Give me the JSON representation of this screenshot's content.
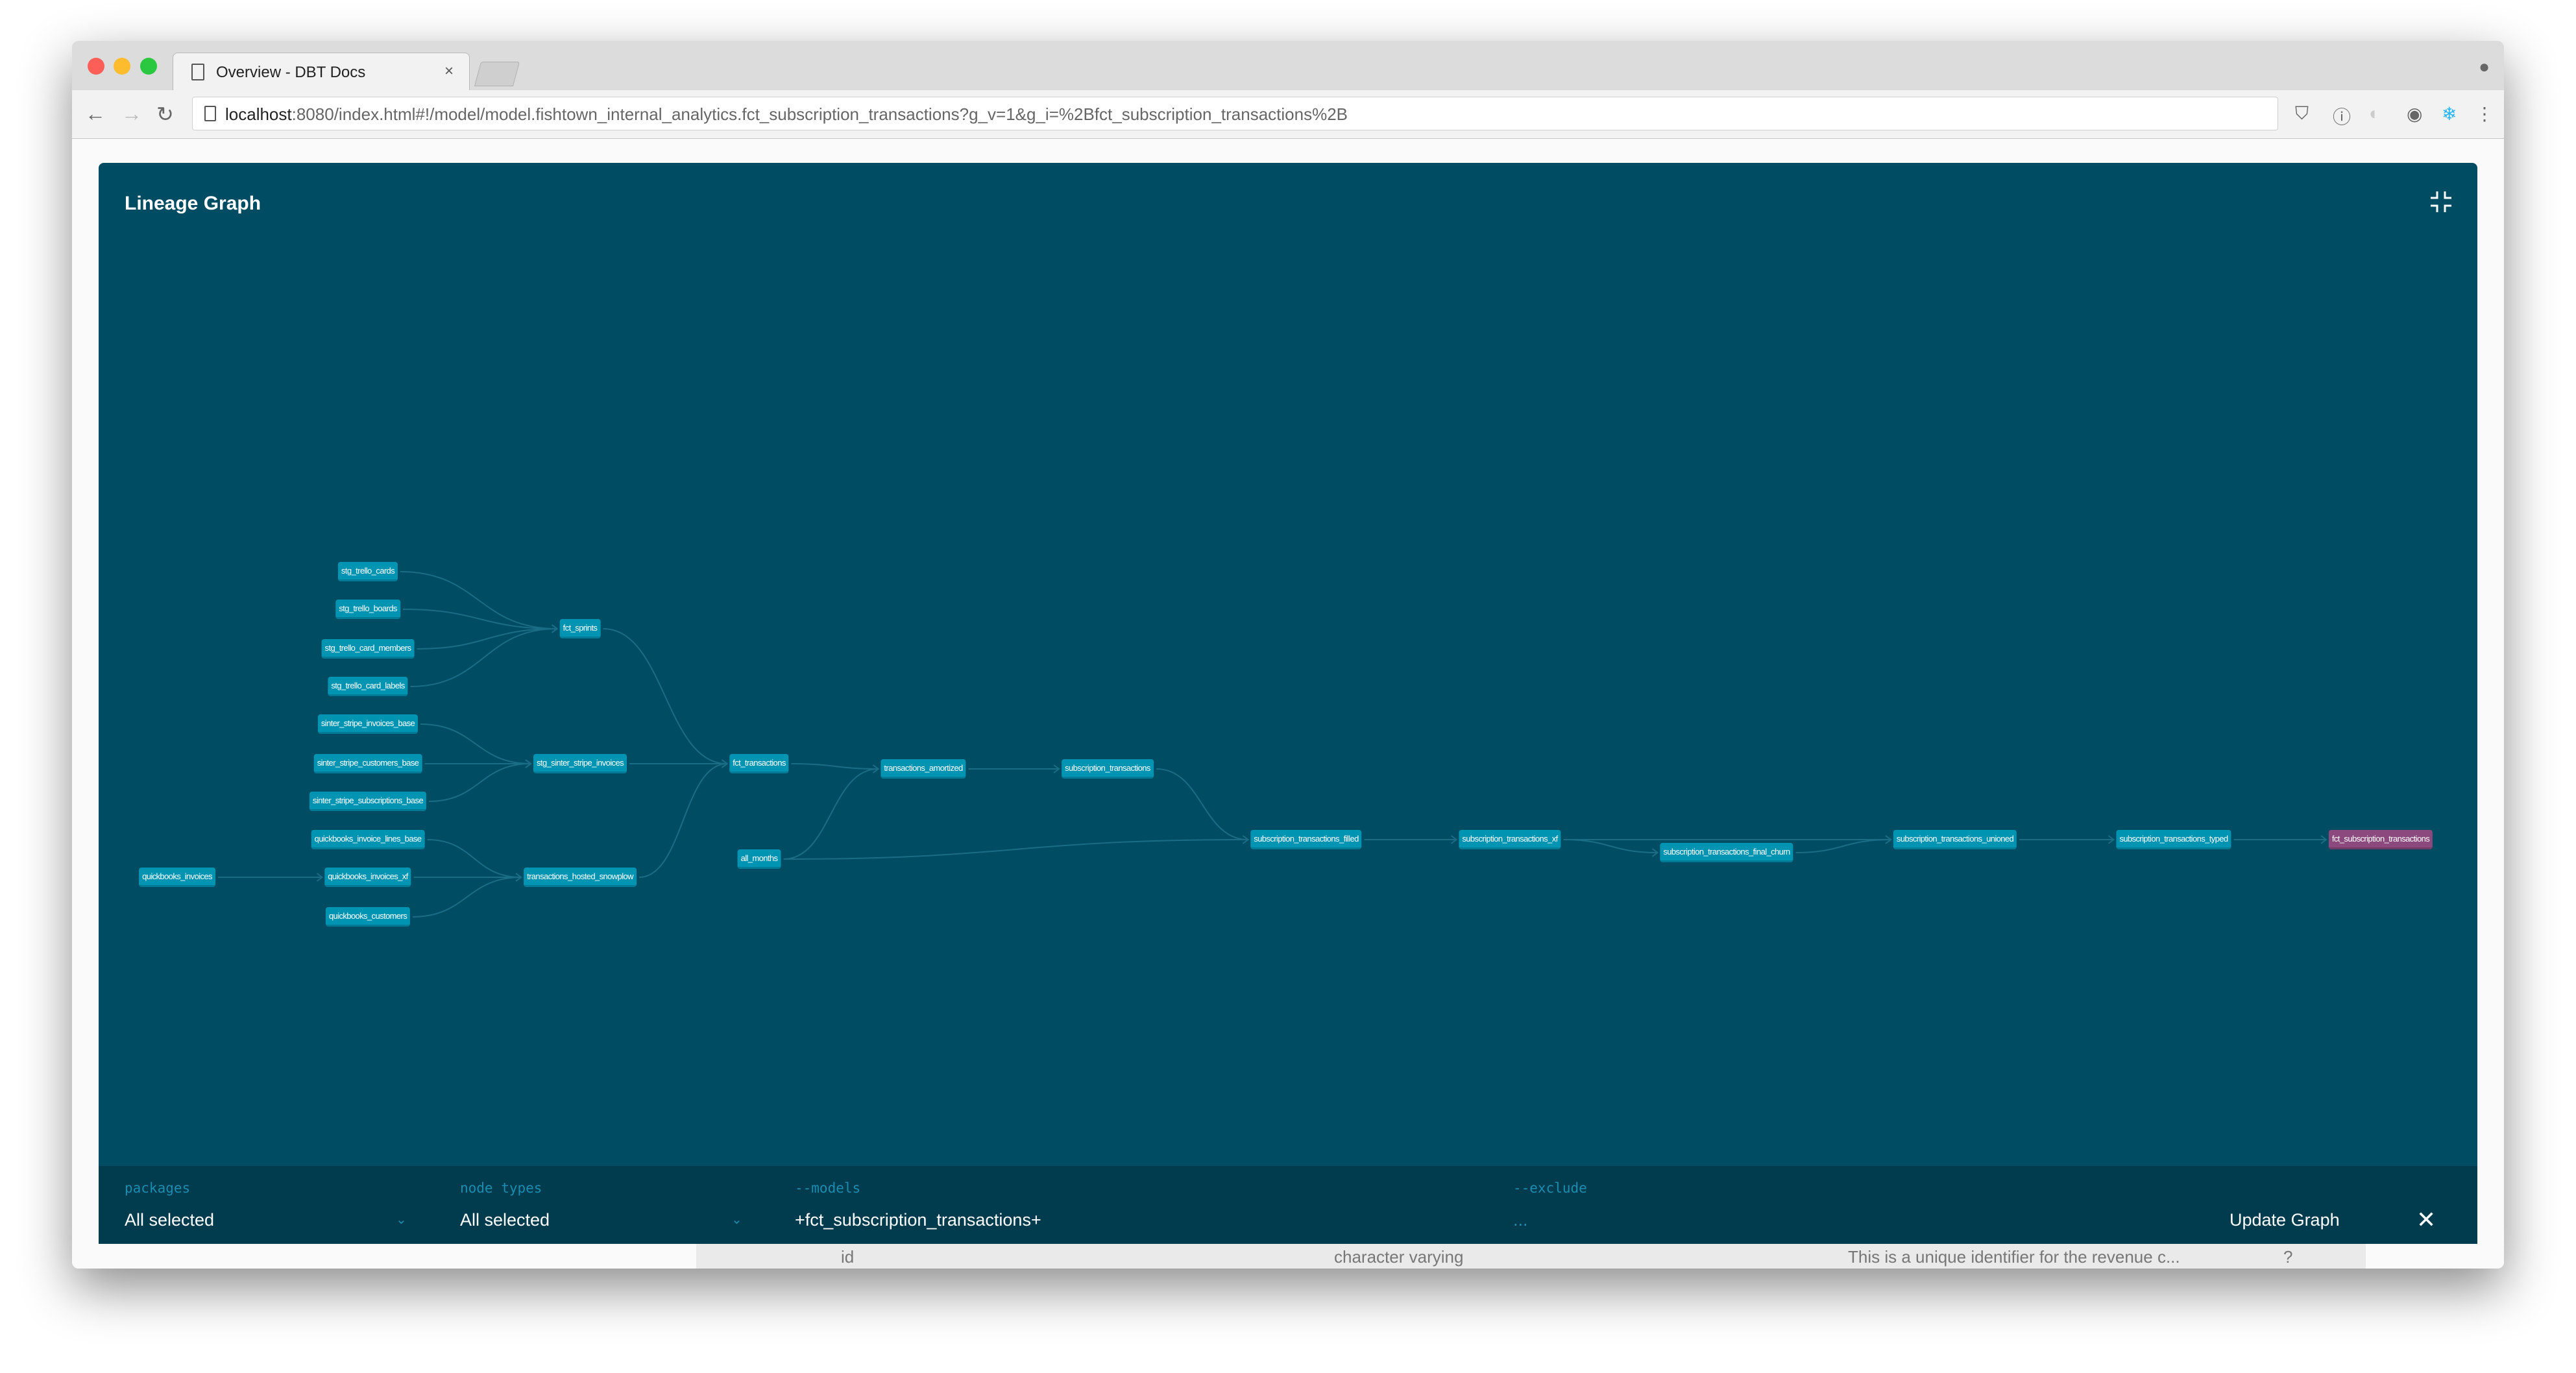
{
  "browser": {
    "tab_title": "Overview - DBT Docs",
    "tab_close": "×",
    "url_host": "localhost",
    "url_rest": ":8080/index.html#!/model/model.fishtown_internal_analytics.fct_subscription_transactions?g_v=1&g_i=%2Bfct_subscription_transactions%2B"
  },
  "background_page": {
    "row": [
      "id",
      "character varying",
      "This is a unique identifier for the revenue c...",
      "?"
    ]
  },
  "lineage": {
    "title": "Lineage Graph",
    "selected_node": "fct_subscription_transactions",
    "colors": {
      "panel": "#004c63",
      "node": "#0094b3",
      "selected_node": "#8b497e",
      "edge": "#1b6d86"
    },
    "nodes": [
      "stg_trello_cards",
      "stg_trello_boards",
      "stg_trello_card_members",
      "stg_trello_card_labels",
      "sinter_stripe_invoices_base",
      "sinter_stripe_customers_base",
      "sinter_stripe_subscriptions_base",
      "quickbooks_invoice_lines_base",
      "quickbooks_invoices_xf",
      "quickbooks_customers",
      "quickbooks_invoices",
      "fct_sprints",
      "stg_sinter_stripe_invoices",
      "transactions_hosted_snowplow",
      "fct_transactions",
      "all_months",
      "transactions_amortized",
      "subscription_transactions",
      "subscription_transactions_filled",
      "subscription_transactions_xf",
      "subscription_transactions_final_churn",
      "subscription_transactions_unioned",
      "subscription_transactions_typed",
      "fct_subscription_transactions"
    ],
    "edges": [
      [
        "stg_trello_cards",
        "fct_sprints"
      ],
      [
        "stg_trello_boards",
        "fct_sprints"
      ],
      [
        "stg_trello_card_members",
        "fct_sprints"
      ],
      [
        "stg_trello_card_labels",
        "fct_sprints"
      ],
      [
        "sinter_stripe_invoices_base",
        "stg_sinter_stripe_invoices"
      ],
      [
        "sinter_stripe_customers_base",
        "stg_sinter_stripe_invoices"
      ],
      [
        "sinter_stripe_subscriptions_base",
        "stg_sinter_stripe_invoices"
      ],
      [
        "quickbooks_invoice_lines_base",
        "transactions_hosted_snowplow"
      ],
      [
        "quickbooks_invoices_xf",
        "transactions_hosted_snowplow"
      ],
      [
        "quickbooks_customers",
        "transactions_hosted_snowplow"
      ],
      [
        "quickbooks_invoices",
        "quickbooks_invoices_xf"
      ],
      [
        "fct_sprints",
        "fct_transactions"
      ],
      [
        "stg_sinter_stripe_invoices",
        "fct_transactions"
      ],
      [
        "transactions_hosted_snowplow",
        "fct_transactions"
      ],
      [
        "fct_transactions",
        "transactions_amortized"
      ],
      [
        "all_months",
        "transactions_amortized"
      ],
      [
        "transactions_amortized",
        "subscription_transactions"
      ],
      [
        "subscription_transactions",
        "subscription_transactions_filled"
      ],
      [
        "all_months",
        "subscription_transactions_filled"
      ],
      [
        "subscription_transactions_filled",
        "subscription_transactions_xf"
      ],
      [
        "subscription_transactions_xf",
        "subscription_transactions_final_churn"
      ],
      [
        "subscription_transactions_xf",
        "subscription_transactions_unioned"
      ],
      [
        "subscription_transactions_final_churn",
        "subscription_transactions_unioned"
      ],
      [
        "subscription_transactions_unioned",
        "subscription_transactions_typed"
      ],
      [
        "subscription_transactions_typed",
        "fct_subscription_transactions"
      ]
    ]
  },
  "filters": {
    "packages": {
      "label": "packages",
      "value": "All selected"
    },
    "node_types": {
      "label": "node types",
      "value": "All selected"
    },
    "models": {
      "label": "--models",
      "value": "+fct_subscription_transactions+"
    },
    "exclude": {
      "label": "--exclude",
      "placeholder": "..."
    },
    "update_label": "Update Graph",
    "close_label": "✕"
  }
}
